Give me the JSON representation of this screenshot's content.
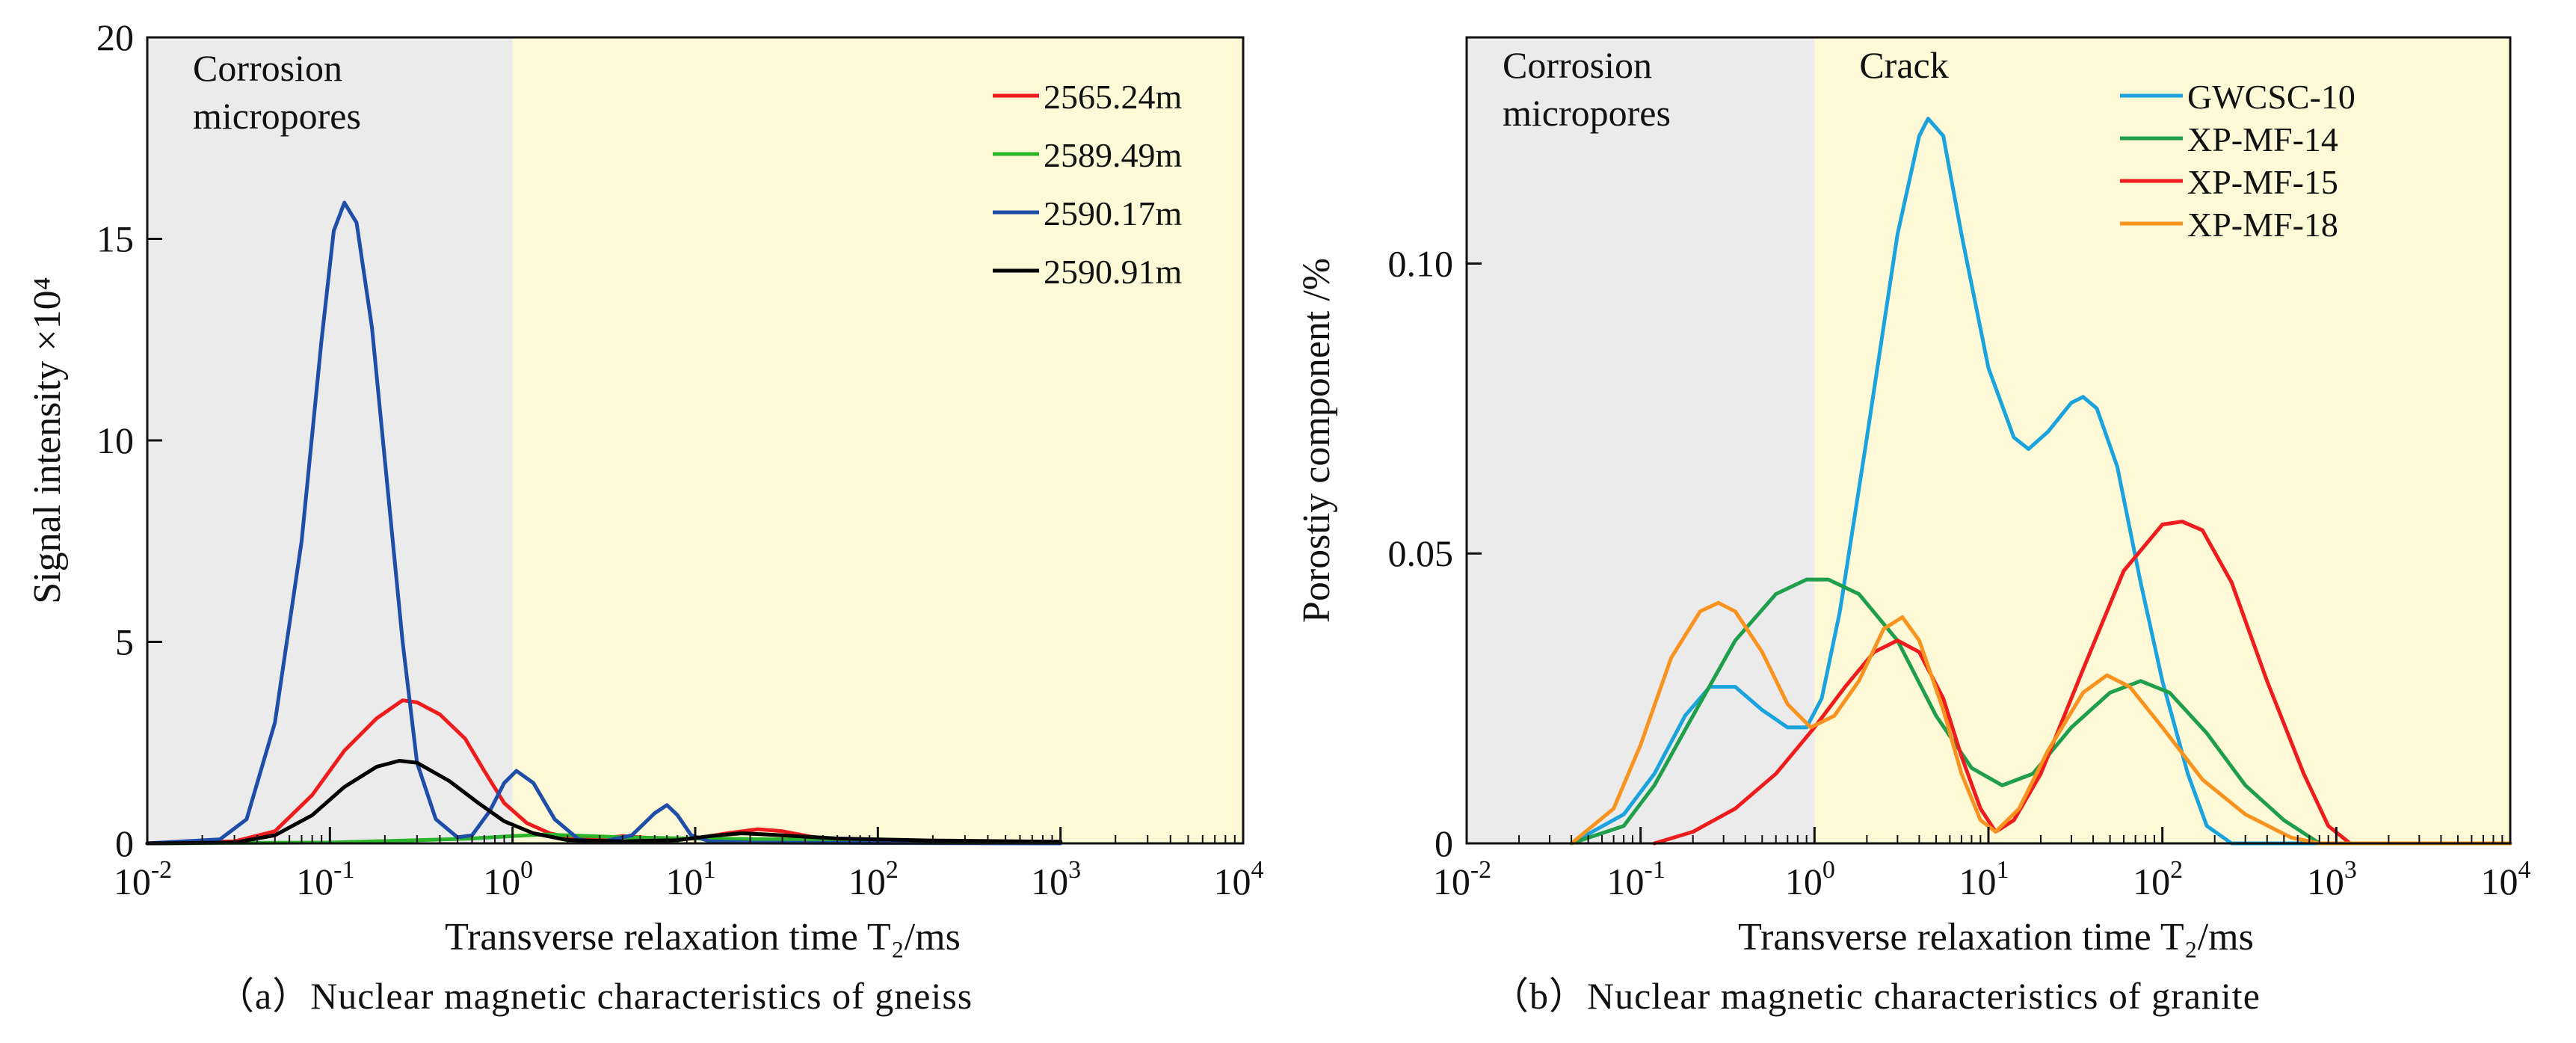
{
  "captions": {
    "a": "（a）Nuclear magnetic characteristics of gneiss",
    "b": "（b）Nuclear magnetic characteristics of granite"
  },
  "chart_data": [
    {
      "type": "line",
      "id": "a",
      "xscale": "log",
      "xlim": [
        0.01,
        10000
      ],
      "ylim": [
        0,
        20
      ],
      "xlabel": "Transverse relaxation time   T₂/ms",
      "ylabel": "Signal intensity  ×10⁴",
      "xticks": [
        0.01,
        0.1,
        1,
        10,
        100,
        1000,
        10000
      ],
      "xtick_labels": [
        [
          "10",
          "-2"
        ],
        [
          "10",
          "-1"
        ],
        [
          "10",
          "0"
        ],
        [
          "10",
          "1"
        ],
        [
          "10",
          "2"
        ],
        [
          "10",
          "3"
        ],
        [
          "10",
          "4"
        ]
      ],
      "yticks": [
        0,
        5,
        10,
        15,
        20
      ],
      "ytick_labels": [
        "0",
        "5",
        "10",
        "15",
        "20"
      ],
      "regions": [
        {
          "label": [
            "Corrosion",
            "micropores"
          ],
          "from": 0.01,
          "to": 1,
          "color": "#ebebeb"
        },
        {
          "label": [],
          "from": 1,
          "to": 10000,
          "color": "#fdf9d6"
        }
      ],
      "legend_position": "top-right",
      "series": [
        {
          "name": "2565.24m",
          "color": "#ee1c1c",
          "points": [
            [
              0.01,
              0
            ],
            [
              0.03,
              0.05
            ],
            [
              0.05,
              0.3
            ],
            [
              0.08,
              1.2
            ],
            [
              0.12,
              2.3
            ],
            [
              0.18,
              3.1
            ],
            [
              0.25,
              3.55
            ],
            [
              0.3,
              3.5
            ],
            [
              0.4,
              3.2
            ],
            [
              0.55,
              2.6
            ],
            [
              0.7,
              1.8
            ],
            [
              0.9,
              1.0
            ],
            [
              1.2,
              0.5
            ],
            [
              1.6,
              0.25
            ],
            [
              2,
              0.15
            ],
            [
              3,
              0.12
            ],
            [
              4,
              0.18
            ],
            [
              5,
              0.15
            ],
            [
              7,
              0.1
            ],
            [
              10,
              0.12
            ],
            [
              15,
              0.25
            ],
            [
              22,
              0.35
            ],
            [
              30,
              0.3
            ],
            [
              45,
              0.15
            ],
            [
              70,
              0.08
            ],
            [
              100,
              0.05
            ],
            [
              1000,
              0.02
            ]
          ]
        },
        {
          "name": "2589.49m",
          "color": "#2bb52b",
          "points": [
            [
              0.01,
              0
            ],
            [
              0.1,
              0.02
            ],
            [
              0.3,
              0.08
            ],
            [
              0.6,
              0.12
            ],
            [
              1,
              0.18
            ],
            [
              1.5,
              0.22
            ],
            [
              2,
              0.2
            ],
            [
              4,
              0.15
            ],
            [
              10,
              0.12
            ],
            [
              30,
              0.1
            ],
            [
              100,
              0.06
            ],
            [
              1000,
              0.03
            ]
          ]
        },
        {
          "name": "2590.17m",
          "color": "#1f4ea8",
          "points": [
            [
              0.01,
              0
            ],
            [
              0.025,
              0.1
            ],
            [
              0.035,
              0.6
            ],
            [
              0.05,
              3
            ],
            [
              0.07,
              7.5
            ],
            [
              0.09,
              12.5
            ],
            [
              0.105,
              15.2
            ],
            [
              0.12,
              15.9
            ],
            [
              0.14,
              15.4
            ],
            [
              0.17,
              12.8
            ],
            [
              0.2,
              9.5
            ],
            [
              0.25,
              5
            ],
            [
              0.3,
              2
            ],
            [
              0.38,
              0.6
            ],
            [
              0.5,
              0.15
            ],
            [
              0.6,
              0.2
            ],
            [
              0.75,
              0.8
            ],
            [
              0.9,
              1.5
            ],
            [
              1.05,
              1.8
            ],
            [
              1.3,
              1.5
            ],
            [
              1.7,
              0.6
            ],
            [
              2.3,
              0.1
            ],
            [
              3,
              0.03
            ],
            [
              4.5,
              0.2
            ],
            [
              6,
              0.75
            ],
            [
              7,
              0.95
            ],
            [
              8,
              0.7
            ],
            [
              9.5,
              0.2
            ],
            [
              12,
              0.05
            ],
            [
              20,
              0.02
            ],
            [
              100,
              0.01
            ],
            [
              1000,
              0
            ]
          ]
        },
        {
          "name": "2590.91m",
          "color": "#000000",
          "points": [
            [
              0.01,
              0
            ],
            [
              0.03,
              0.02
            ],
            [
              0.05,
              0.2
            ],
            [
              0.08,
              0.7
            ],
            [
              0.12,
              1.4
            ],
            [
              0.18,
              1.9
            ],
            [
              0.24,
              2.05
            ],
            [
              0.3,
              2.0
            ],
            [
              0.45,
              1.55
            ],
            [
              0.65,
              1.0
            ],
            [
              0.9,
              0.55
            ],
            [
              1.3,
              0.25
            ],
            [
              2,
              0.08
            ],
            [
              4,
              0.05
            ],
            [
              8,
              0.08
            ],
            [
              12,
              0.18
            ],
            [
              18,
              0.25
            ],
            [
              30,
              0.2
            ],
            [
              60,
              0.12
            ],
            [
              200,
              0.07
            ],
            [
              1000,
              0.04
            ]
          ]
        }
      ]
    },
    {
      "type": "line",
      "id": "b",
      "xscale": "log",
      "xlim": [
        0.01,
        10000
      ],
      "ylim": [
        0,
        0.139
      ],
      "xlabel": "Transverse relaxation time  T₂/ms",
      "ylabel": "Porostiy component /%",
      "xticks": [
        0.01,
        0.1,
        1,
        10,
        100,
        1000,
        10000
      ],
      "xtick_labels": [
        [
          "10",
          "-2"
        ],
        [
          "10",
          "-1"
        ],
        [
          "10",
          "0"
        ],
        [
          "10",
          "1"
        ],
        [
          "10",
          "2"
        ],
        [
          "10",
          "3"
        ],
        [
          "10",
          "4"
        ]
      ],
      "yticks": [
        0,
        0.05,
        0.1
      ],
      "ytick_labels": [
        "0",
        "0.05",
        "0.10"
      ],
      "regions": [
        {
          "label": [
            "Corrosion",
            "micropores"
          ],
          "from": 0.01,
          "to": 1,
          "color": "#ebebeb"
        },
        {
          "label": [
            "Crack"
          ],
          "from": 1,
          "to": 10000,
          "color": "#fdf9d6"
        }
      ],
      "legend_position": "top-right",
      "series": [
        {
          "name": "GWCSC-10",
          "color": "#1aa3dc",
          "points": [
            [
              0.04,
              0
            ],
            [
              0.08,
              0.005
            ],
            [
              0.12,
              0.012
            ],
            [
              0.18,
              0.022
            ],
            [
              0.25,
              0.027
            ],
            [
              0.35,
              0.027
            ],
            [
              0.5,
              0.023
            ],
            [
              0.7,
              0.02
            ],
            [
              0.9,
              0.02
            ],
            [
              1.1,
              0.025
            ],
            [
              1.4,
              0.04
            ],
            [
              2,
              0.07
            ],
            [
              3,
              0.105
            ],
            [
              4,
              0.122
            ],
            [
              4.5,
              0.125
            ],
            [
              5.5,
              0.122
            ],
            [
              7,
              0.105
            ],
            [
              10,
              0.082
            ],
            [
              14,
              0.07
            ],
            [
              17,
              0.068
            ],
            [
              22,
              0.071
            ],
            [
              30,
              0.076
            ],
            [
              35,
              0.077
            ],
            [
              42,
              0.075
            ],
            [
              55,
              0.065
            ],
            [
              75,
              0.045
            ],
            [
              100,
              0.028
            ],
            [
              140,
              0.012
            ],
            [
              180,
              0.003
            ],
            [
              250,
              0
            ],
            [
              10000,
              0
            ]
          ]
        },
        {
          "name": "XP-MF-14",
          "color": "#1f9e4b",
          "points": [
            [
              0.04,
              0
            ],
            [
              0.08,
              0.003
            ],
            [
              0.12,
              0.01
            ],
            [
              0.2,
              0.022
            ],
            [
              0.35,
              0.035
            ],
            [
              0.6,
              0.043
            ],
            [
              0.9,
              0.0455
            ],
            [
              1.2,
              0.0455
            ],
            [
              1.8,
              0.043
            ],
            [
              3,
              0.035
            ],
            [
              5,
              0.022
            ],
            [
              8,
              0.013
            ],
            [
              12,
              0.01
            ],
            [
              18,
              0.012
            ],
            [
              30,
              0.02
            ],
            [
              50,
              0.026
            ],
            [
              75,
              0.028
            ],
            [
              110,
              0.026
            ],
            [
              180,
              0.019
            ],
            [
              300,
              0.01
            ],
            [
              500,
              0.004
            ],
            [
              800,
              0
            ],
            [
              10000,
              0
            ]
          ]
        },
        {
          "name": "XP-MF-15",
          "color": "#ee1c1c",
          "points": [
            [
              0.12,
              0
            ],
            [
              0.2,
              0.002
            ],
            [
              0.35,
              0.006
            ],
            [
              0.6,
              0.012
            ],
            [
              1,
              0.02
            ],
            [
              1.5,
              0.027
            ],
            [
              2.2,
              0.033
            ],
            [
              3,
              0.035
            ],
            [
              4,
              0.033
            ],
            [
              5.5,
              0.025
            ],
            [
              7,
              0.015
            ],
            [
              9,
              0.006
            ],
            [
              11,
              0.002
            ],
            [
              14,
              0.004
            ],
            [
              20,
              0.012
            ],
            [
              35,
              0.03
            ],
            [
              60,
              0.047
            ],
            [
              100,
              0.055
            ],
            [
              130,
              0.0555
            ],
            [
              170,
              0.054
            ],
            [
              250,
              0.045
            ],
            [
              400,
              0.028
            ],
            [
              650,
              0.012
            ],
            [
              900,
              0.003
            ],
            [
              1200,
              0
            ],
            [
              10000,
              0
            ]
          ]
        },
        {
          "name": "XP-MF-18",
          "color": "#f7931e",
          "points": [
            [
              0.04,
              0
            ],
            [
              0.07,
              0.006
            ],
            [
              0.1,
              0.017
            ],
            [
              0.15,
              0.032
            ],
            [
              0.22,
              0.04
            ],
            [
              0.28,
              0.0415
            ],
            [
              0.35,
              0.04
            ],
            [
              0.5,
              0.033
            ],
            [
              0.7,
              0.024
            ],
            [
              0.95,
              0.02
            ],
            [
              1.3,
              0.022
            ],
            [
              1.8,
              0.028
            ],
            [
              2.5,
              0.037
            ],
            [
              3.2,
              0.039
            ],
            [
              4,
              0.035
            ],
            [
              5.5,
              0.023
            ],
            [
              7,
              0.012
            ],
            [
              9,
              0.004
            ],
            [
              11,
              0.002
            ],
            [
              15,
              0.006
            ],
            [
              22,
              0.016
            ],
            [
              35,
              0.026
            ],
            [
              48,
              0.029
            ],
            [
              65,
              0.027
            ],
            [
              100,
              0.02
            ],
            [
              170,
              0.011
            ],
            [
              300,
              0.005
            ],
            [
              550,
              0.001
            ],
            [
              800,
              0
            ],
            [
              10000,
              0
            ]
          ]
        }
      ]
    }
  ]
}
